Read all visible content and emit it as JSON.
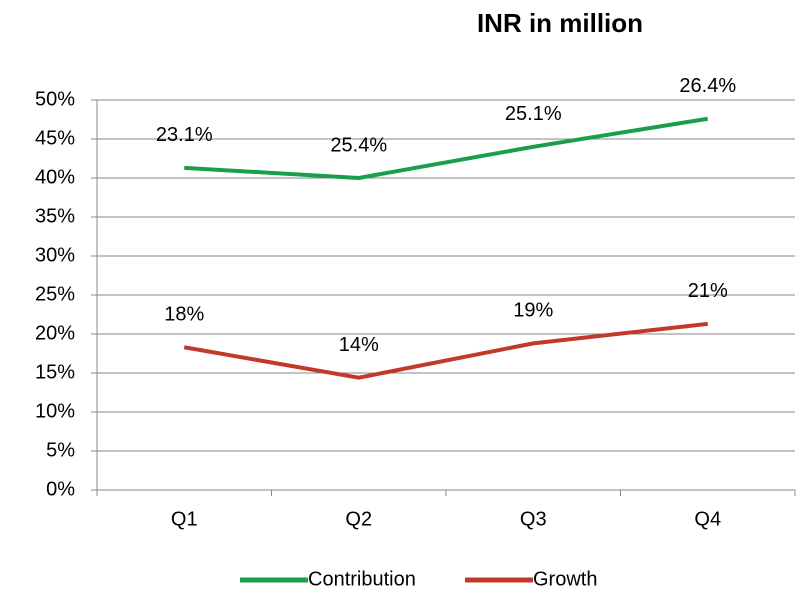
{
  "chart_data": {
    "type": "line",
    "title": "INR in million",
    "categories": [
      "Q1",
      "Q2",
      "Q3",
      "Q4"
    ],
    "series": [
      {
        "name": "Contribution",
        "color": "#1a9e4b",
        "values": [
          41.3,
          40.0,
          44.0,
          47.6
        ]
      },
      {
        "name": "Growth",
        "color": "#c0392b",
        "values": [
          18.3,
          14.4,
          18.8,
          21.3
        ],
        "value_labels": [
          "18%",
          "14%",
          "19%",
          "21%"
        ]
      }
    ],
    "annotations": [
      "23.1%",
      "25.4%",
      "25.1%",
      "26.4%"
    ],
    "ylim": [
      0,
      50
    ],
    "yticks": [
      {
        "value": 0,
        "label": "0%"
      },
      {
        "value": 5,
        "label": "5%"
      },
      {
        "value": 10,
        "label": "10%"
      },
      {
        "value": 15,
        "label": "15%"
      },
      {
        "value": 20,
        "label": "20%"
      },
      {
        "value": 25,
        "label": "25%"
      },
      {
        "value": 30,
        "label": "30%"
      },
      {
        "value": 35,
        "label": "35%"
      },
      {
        "value": 40,
        "label": "40%"
      },
      {
        "value": 45,
        "label": "45%"
      },
      {
        "value": 50,
        "label": "50%"
      }
    ],
    "grid": true,
    "legend": "bottom"
  }
}
